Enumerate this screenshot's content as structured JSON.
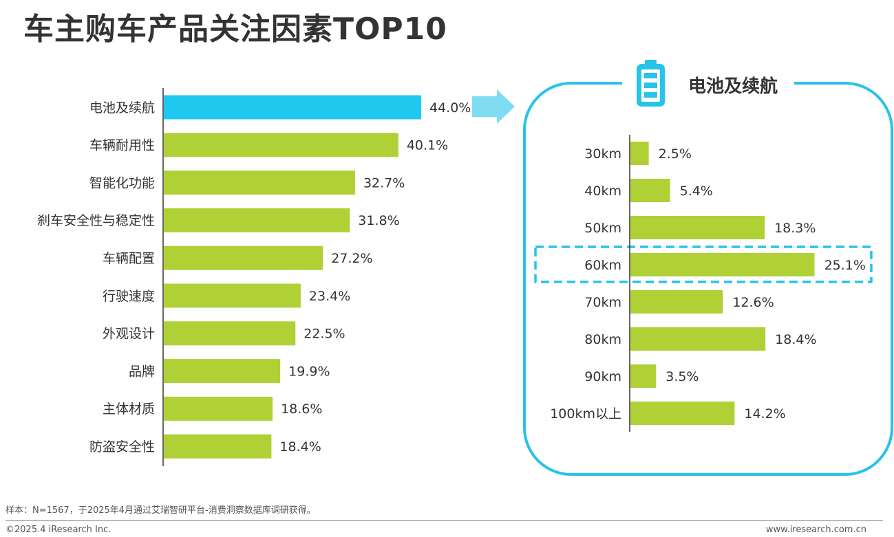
{
  "title": "车主购车产品关注因素TOP10",
  "colors": {
    "highlight": "#1ec8ef",
    "bar": "#b0d136",
    "frame": "#27c3ea",
    "arrow": "#7fdcf3",
    "axis": "#333333"
  },
  "panel": {
    "title": "电池及续航",
    "icon": "battery-icon"
  },
  "chart_data": [
    {
      "type": "bar",
      "orientation": "horizontal",
      "title": "",
      "categories": [
        "电池及续航",
        "车辆耐用性",
        "智能化功能",
        "刹车安全性与稳定性",
        "车辆配置",
        "行驶速度",
        "外观设计",
        "品牌",
        "主体材质",
        "防盗安全性"
      ],
      "values": [
        44.0,
        40.1,
        32.7,
        31.8,
        27.2,
        23.4,
        22.5,
        19.9,
        18.6,
        18.4
      ],
      "labels": [
        "44.0%",
        "40.1%",
        "32.7%",
        "31.8%",
        "27.2%",
        "23.4%",
        "22.5%",
        "19.9%",
        "18.6%",
        "18.4%"
      ],
      "highlight_index": 0,
      "unit": "%"
    },
    {
      "type": "bar",
      "orientation": "horizontal",
      "title": "电池及续航",
      "categories": [
        "30km",
        "40km",
        "50km",
        "60km",
        "70km",
        "80km",
        "90km",
        "100km以上"
      ],
      "values": [
        2.5,
        5.4,
        18.3,
        25.1,
        12.6,
        18.4,
        3.5,
        14.2
      ],
      "labels": [
        "2.5%",
        "5.4%",
        "18.3%",
        "25.1%",
        "12.6%",
        "18.4%",
        "3.5%",
        "14.2%"
      ],
      "highlight_index": 3,
      "unit": "%"
    }
  ],
  "footer": {
    "note": "样本：N=1567，于2025年4月通过艾瑞智研平台-消费洞察数据库调研获得。",
    "copyright": "©2025.4 iResearch Inc.",
    "url": "www.iresearch.com.cn"
  }
}
